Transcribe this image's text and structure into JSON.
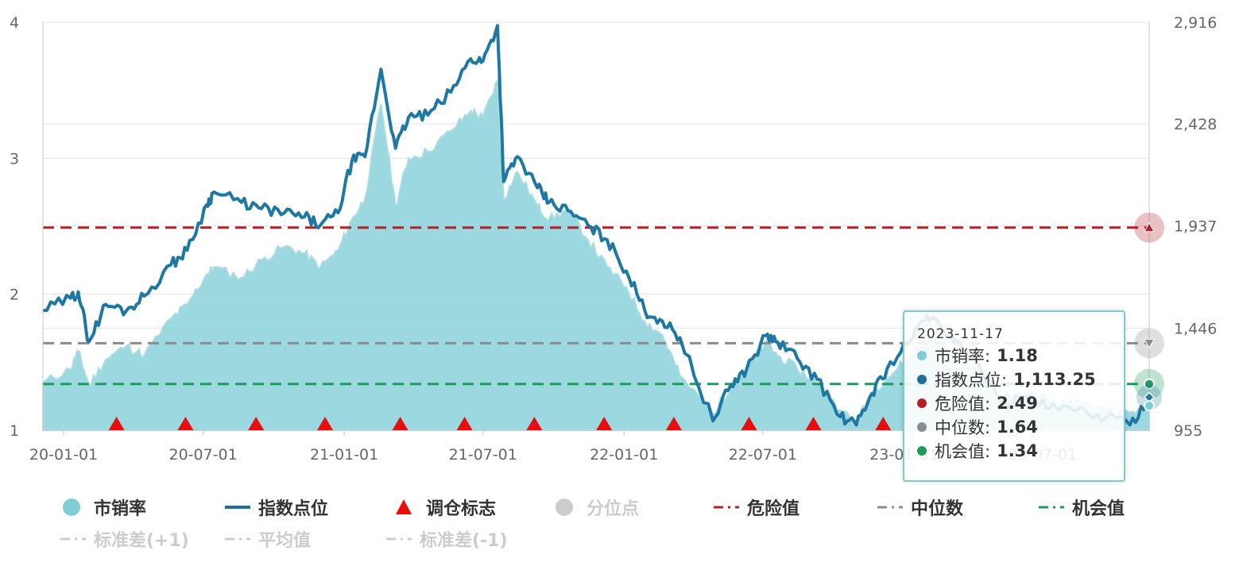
{
  "chart_data": {
    "type": "area",
    "x_ticks": [
      "20-01-01",
      "20-07-01",
      "21-01-01",
      "21-07-01",
      "22-01-01",
      "22-07-01",
      "23-01-01",
      "23-07-01"
    ],
    "x_range": [
      "2019-12-05",
      "2023-11-17"
    ],
    "y_left": {
      "ticks": [
        "1",
        "2",
        "3",
        "4"
      ],
      "range": [
        1,
        4
      ]
    },
    "y_right": {
      "ticks": [
        "955",
        "1,446",
        "1,937",
        "2,428",
        "2,916"
      ],
      "range": [
        955,
        2916
      ]
    },
    "series": [
      {
        "name": "市销率",
        "axis": "left",
        "color": "#80cdd6",
        "points": [
          [
            "2019-12-05",
            1.35
          ],
          [
            "2020-01-10",
            1.45
          ],
          [
            "2020-01-20",
            1.58
          ],
          [
            "2020-02-03",
            1.33
          ],
          [
            "2020-02-25",
            1.52
          ],
          [
            "2020-03-23",
            1.62
          ],
          [
            "2020-04-15",
            1.55
          ],
          [
            "2020-05-20",
            1.82
          ],
          [
            "2020-06-10",
            1.92
          ],
          [
            "2020-07-06",
            2.15
          ],
          [
            "2020-07-15",
            2.2
          ],
          [
            "2020-08-20",
            2.12
          ],
          [
            "2020-09-15",
            2.25
          ],
          [
            "2020-10-15",
            2.35
          ],
          [
            "2020-11-10",
            2.3
          ],
          [
            "2020-12-01",
            2.2
          ],
          [
            "2020-12-24",
            2.32
          ],
          [
            "2021-01-11",
            2.55
          ],
          [
            "2021-01-28",
            2.7
          ],
          [
            "2021-02-18",
            3.4
          ],
          [
            "2021-03-09",
            2.65
          ],
          [
            "2021-03-26",
            3.0
          ],
          [
            "2021-04-20",
            3.05
          ],
          [
            "2021-05-20",
            3.2
          ],
          [
            "2021-06-15",
            3.35
          ],
          [
            "2021-07-01",
            3.3
          ],
          [
            "2021-07-20",
            3.57
          ],
          [
            "2021-07-28",
            2.7
          ],
          [
            "2021-08-15",
            2.9
          ],
          [
            "2021-09-10",
            2.65
          ],
          [
            "2021-09-25",
            2.55
          ],
          [
            "2021-10-20",
            2.62
          ],
          [
            "2021-11-15",
            2.4
          ],
          [
            "2021-12-10",
            2.2
          ],
          [
            "2022-01-04",
            2.05
          ],
          [
            "2022-01-28",
            1.8
          ],
          [
            "2022-02-20",
            1.7
          ],
          [
            "2022-03-15",
            1.4
          ],
          [
            "2022-04-27",
            1.12
          ],
          [
            "2022-05-20",
            1.32
          ],
          [
            "2022-06-10",
            1.45
          ],
          [
            "2022-07-05",
            1.65
          ],
          [
            "2022-07-20",
            1.55
          ],
          [
            "2022-08-15",
            1.45
          ],
          [
            "2022-09-10",
            1.35
          ],
          [
            "2022-10-10",
            1.15
          ],
          [
            "2022-10-31",
            1.05
          ],
          [
            "2022-11-20",
            1.28
          ],
          [
            "2022-12-10",
            1.38
          ],
          [
            "2023-01-10",
            1.55
          ],
          [
            "2023-01-31",
            1.7
          ],
          [
            "2023-02-20",
            1.62
          ],
          [
            "2023-03-10",
            1.55
          ],
          [
            "2023-04-10",
            1.42
          ],
          [
            "2023-05-10",
            1.25
          ],
          [
            "2023-06-10",
            1.3
          ],
          [
            "2023-07-10",
            1.22
          ],
          [
            "2023-08-10",
            1.2
          ],
          [
            "2023-09-10",
            1.18
          ],
          [
            "2023-10-23",
            1.13
          ],
          [
            "2023-11-17",
            1.18
          ]
        ]
      },
      {
        "name": "指数点位",
        "axis": "right",
        "color": "#1f77a3",
        "points": [
          [
            "2019-12-05",
            1530
          ],
          [
            "2020-01-10",
            1590
          ],
          [
            "2020-01-20",
            1620
          ],
          [
            "2020-02-03",
            1380
          ],
          [
            "2020-02-25",
            1560
          ],
          [
            "2020-03-23",
            1530
          ],
          [
            "2020-04-15",
            1600
          ],
          [
            "2020-05-20",
            1750
          ],
          [
            "2020-06-10",
            1820
          ],
          [
            "2020-07-06",
            2040
          ],
          [
            "2020-07-15",
            2100
          ],
          [
            "2020-08-20",
            2050
          ],
          [
            "2020-09-15",
            2020
          ],
          [
            "2020-10-15",
            2000
          ],
          [
            "2020-11-10",
            1980
          ],
          [
            "2020-12-01",
            1940
          ],
          [
            "2020-12-24",
            2000
          ],
          [
            "2021-01-11",
            2250
          ],
          [
            "2021-01-28",
            2270
          ],
          [
            "2021-02-18",
            2690
          ],
          [
            "2021-03-09",
            2310
          ],
          [
            "2021-03-26",
            2460
          ],
          [
            "2021-04-20",
            2470
          ],
          [
            "2021-05-20",
            2580
          ],
          [
            "2021-06-15",
            2740
          ],
          [
            "2021-07-01",
            2730
          ],
          [
            "2021-07-20",
            2900
          ],
          [
            "2021-07-28",
            2150
          ],
          [
            "2021-08-15",
            2270
          ],
          [
            "2021-09-10",
            2120
          ],
          [
            "2021-09-25",
            2050
          ],
          [
            "2021-10-20",
            2010
          ],
          [
            "2021-11-15",
            1940
          ],
          [
            "2021-12-10",
            1870
          ],
          [
            "2022-01-04",
            1720
          ],
          [
            "2022-01-28",
            1530
          ],
          [
            "2022-02-20",
            1480
          ],
          [
            "2022-03-15",
            1400
          ],
          [
            "2022-04-27",
            1000
          ],
          [
            "2022-05-20",
            1170
          ],
          [
            "2022-06-10",
            1250
          ],
          [
            "2022-07-05",
            1410
          ],
          [
            "2022-07-20",
            1380
          ],
          [
            "2022-08-15",
            1300
          ],
          [
            "2022-09-10",
            1200
          ],
          [
            "2022-10-10",
            1020
          ],
          [
            "2022-10-31",
            980
          ],
          [
            "2022-11-20",
            1130
          ],
          [
            "2022-12-10",
            1250
          ],
          [
            "2023-01-10",
            1390
          ],
          [
            "2023-01-31",
            1510
          ],
          [
            "2023-02-20",
            1440
          ],
          [
            "2023-03-10",
            1390
          ],
          [
            "2023-04-10",
            1260
          ],
          [
            "2023-05-10",
            1090
          ],
          [
            "2023-06-10",
            1110
          ],
          [
            "2023-07-10",
            1060
          ],
          [
            "2023-08-10",
            1050
          ],
          [
            "2023-09-10",
            1030
          ],
          [
            "2023-10-23",
            980
          ],
          [
            "2023-11-17",
            1113.25
          ]
        ]
      }
    ],
    "reference_lines": [
      {
        "name": "危险值",
        "value": 2.49,
        "color": "#b52025",
        "style": "dashed"
      },
      {
        "name": "中位数",
        "value": 1.64,
        "color": "#888b92",
        "style": "dashed"
      },
      {
        "name": "机会值",
        "value": 1.34,
        "color": "#1e9a5a",
        "style": "dashed"
      },
      {
        "name": "标准差(+1)",
        "value": null,
        "color": "#cccccc",
        "style": "dashed",
        "hidden": true
      },
      {
        "name": "平均值",
        "value": null,
        "color": "#cccccc",
        "style": "dashed",
        "hidden": true
      },
      {
        "name": "标准差(-1)",
        "value": null,
        "color": "#cccccc",
        "style": "dashed",
        "hidden": true
      }
    ],
    "rebalance_markers": {
      "name": "调仓标志",
      "color": "#e80e0e",
      "dates": [
        "2020-03-10",
        "2020-06-08",
        "2020-09-08",
        "2020-12-07",
        "2021-03-15",
        "2021-06-07",
        "2021-09-06",
        "2021-12-06",
        "2022-03-07",
        "2022-06-13",
        "2022-09-05",
        "2022-12-05"
      ]
    },
    "legend_position": "bottom"
  },
  "tooltip": {
    "date": "2023-11-17",
    "rows": [
      {
        "label": "市销率",
        "value": "1.18",
        "color": "#80cdd6"
      },
      {
        "label": "指数点位",
        "value": "1,113.25",
        "color": "#1f6e9a"
      },
      {
        "label": "危险值",
        "value": "2.49",
        "color": "#b52025"
      },
      {
        "label": "中位数",
        "value": "1.64",
        "color": "#888b92"
      },
      {
        "label": "机会值",
        "value": "1.34",
        "color": "#1e9a5a"
      }
    ]
  },
  "legend": {
    "items": [
      {
        "label": "市销率",
        "symbol": "circle",
        "color": "#80cdd6",
        "active": true
      },
      {
        "label": "指数点位",
        "symbol": "line",
        "color": "#1f6e9a",
        "active": true
      },
      {
        "label": "调仓标志",
        "symbol": "triangle",
        "color": "#e80e0e",
        "active": true
      },
      {
        "label": "分位点",
        "symbol": "circle",
        "color": "#cccccc",
        "active": false
      },
      {
        "label": "危险值",
        "symbol": "dash",
        "color": "#b52025",
        "active": true
      },
      {
        "label": "中位数",
        "symbol": "dash",
        "color": "#888b92",
        "active": true
      },
      {
        "label": "机会值",
        "symbol": "dash",
        "color": "#1e9a5a",
        "active": true
      },
      {
        "label": "标准差(+1)",
        "symbol": "dash",
        "color": "#cccccc",
        "active": false
      },
      {
        "label": "平均值",
        "symbol": "dash",
        "color": "#cccccc",
        "active": false
      },
      {
        "label": "标准差(-1)",
        "symbol": "dash",
        "color": "#cccccc",
        "active": false
      }
    ]
  }
}
